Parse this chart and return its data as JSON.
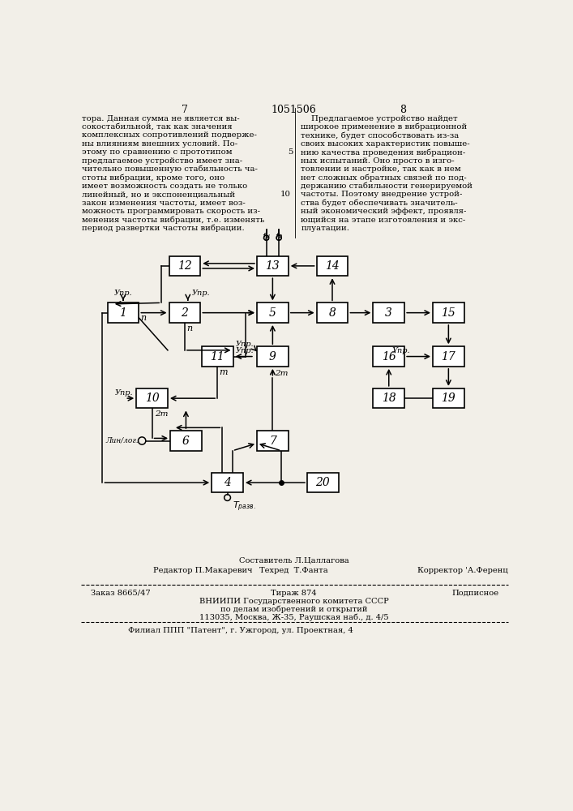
{
  "bg_color": "#f2efe8",
  "header": "1051506",
  "page_left": "7",
  "page_right": "8",
  "left_col_lines": [
    "тора. Данная сумма не является вы-",
    "сокостабильной, так как значения",
    "комплексных сопротивлений подверже-",
    "ны влияниям внешних условий. По-",
    "этому по сравнению с прототипом",
    "предлагаемое устройство имеет зна-",
    "чительно повышенную стабильность ча-",
    "стоты вибрации, кроме того, оно",
    "имеет возможность создать не только",
    "линейный, но и экспоненциальный",
    "закон изменения частоты, имеет воз-",
    "можность программировать скорость из-",
    "менения частоты вибрации, т.е. изменять",
    "период развертки частоты вибрации."
  ],
  "right_col_lines": [
    "    Предлагаемое устройство найдет",
    "широкое применение в вибрационной",
    "технике, будет способствовать из-за",
    "своих высоких характеристик повыше-",
    "нию качества проведения вибрацион-",
    "ных испытаний. Оно просто в изго-",
    "товлении и настройке, так как в нем",
    "нет сложных обратных связей по под-",
    "держанию стабильности генерируемой",
    "частоты. Поэтому внедрение устрой-",
    "ства будет обеспечивать значитель-",
    "ный экономический эффект, проявля-",
    "ющийся на этапе изготовления и экс-",
    "плуатации."
  ],
  "footer_sestavitel": "Составитель Л.Цаллагова",
  "footer_redaktor": "Редактор П.Макаревич",
  "footer_tekhred": "Техред  Т.Фанта",
  "footer_korrektor": "Корректор 'А.Ференц",
  "footer_zakaz": "Заказ 8665/47",
  "footer_tirazh": "Тираж 874",
  "footer_podpisnoe": "Подписное",
  "footer_vniip1": "ВНИИПИ Государственного комитета СССР",
  "footer_vniip2": "по делам изобретений и открытий",
  "footer_vniip3": "113035, Москва, Ж-35, Раушская наб., д. 4/5",
  "footer_filial": "Филиал ППП \"Патент\", г. Ужгород, ул. Проектная, 4"
}
